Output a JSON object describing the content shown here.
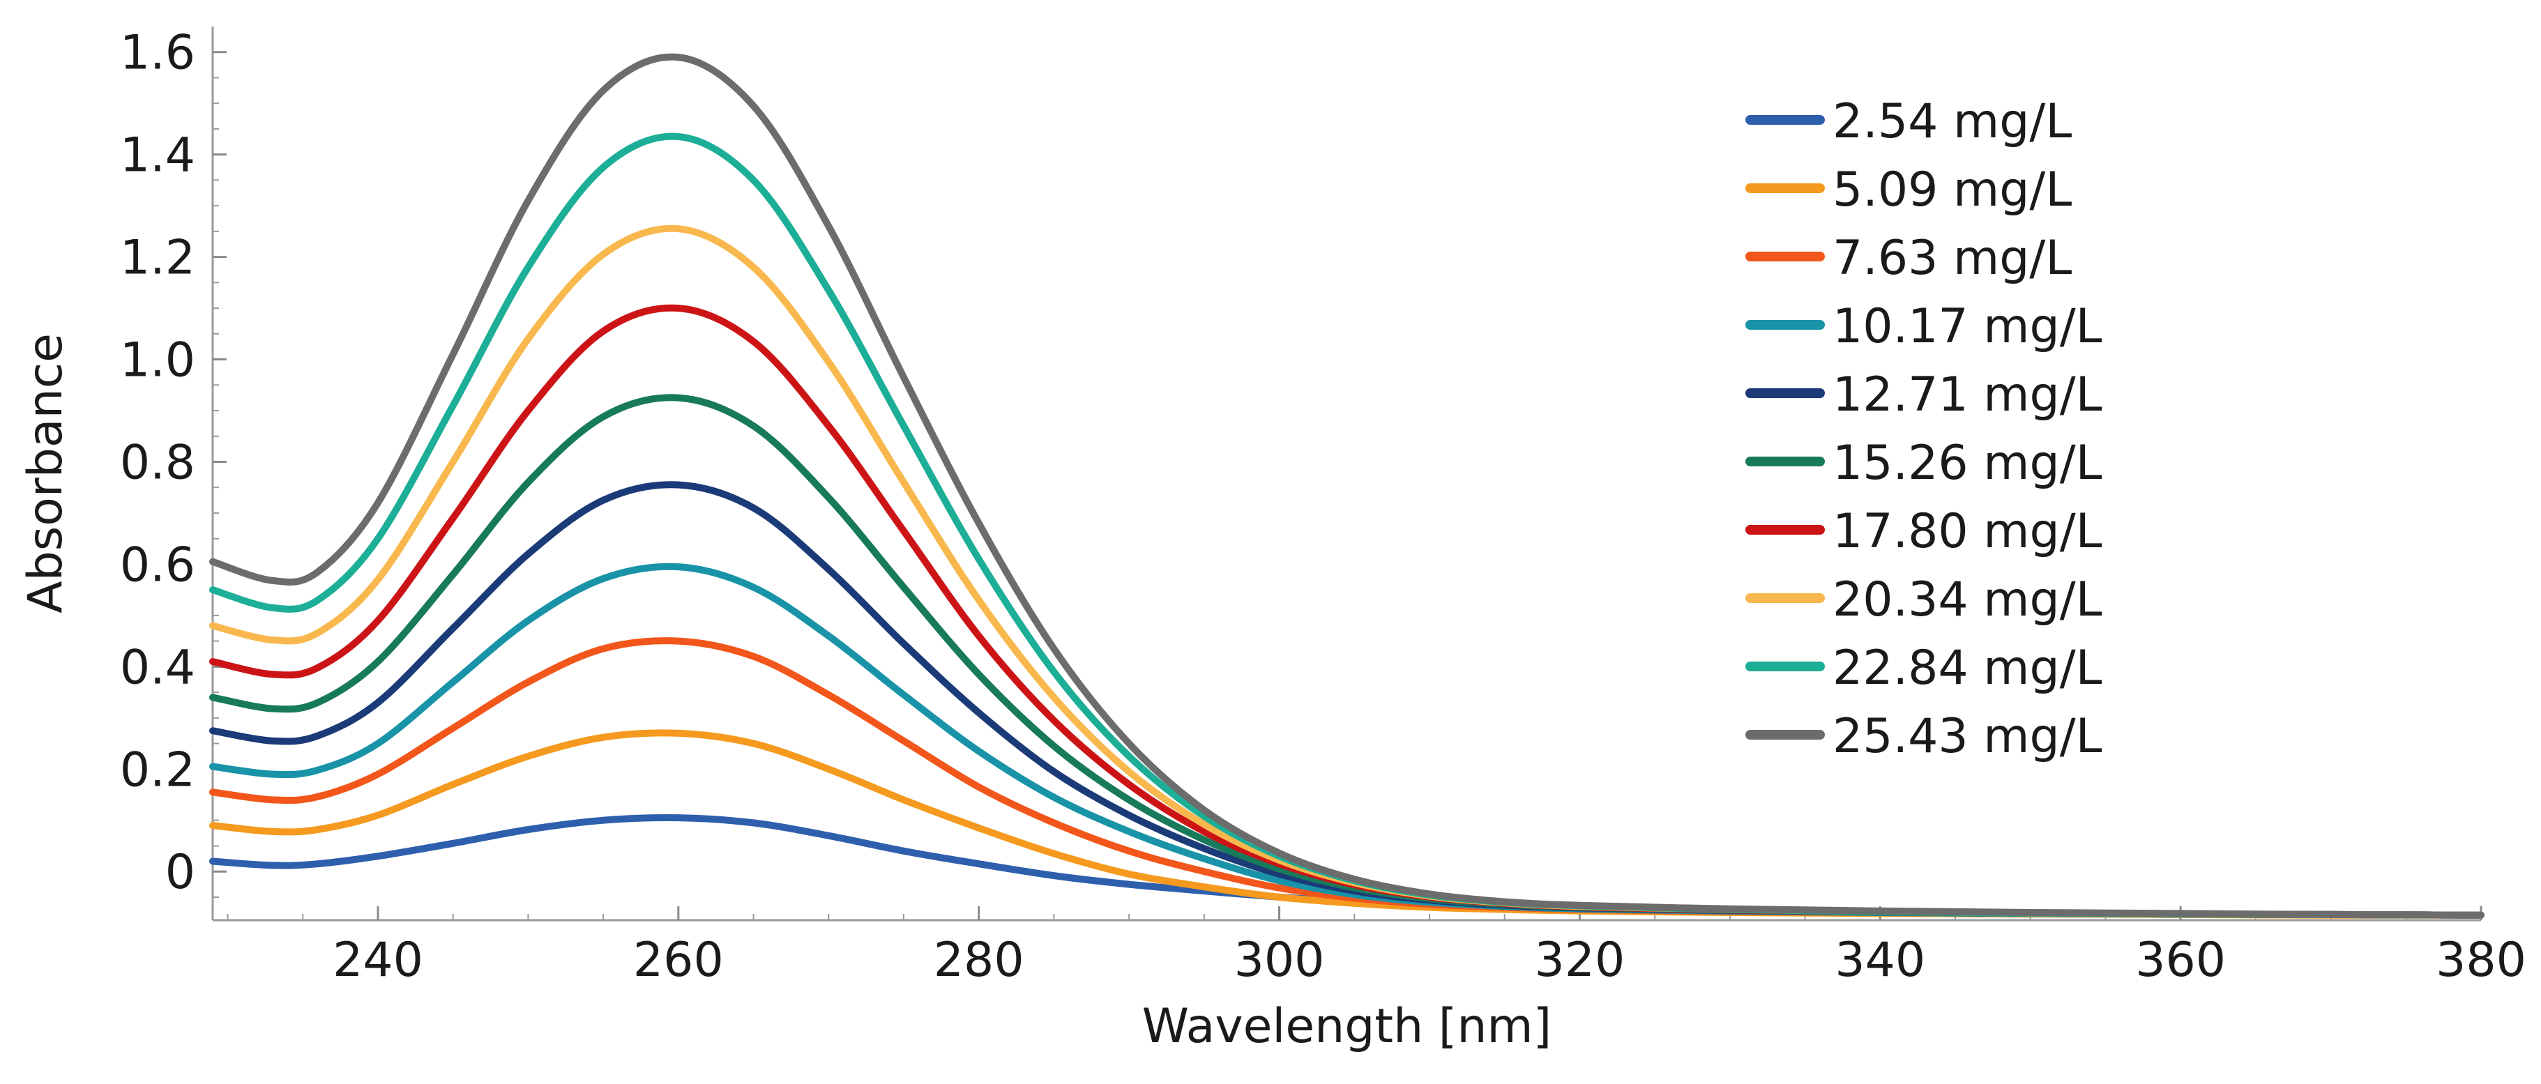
{
  "chart_data": {
    "type": "line",
    "title": "",
    "xlabel": "Wavelength [nm]",
    "ylabel": "Absorbance",
    "xlim": [
      229,
      380
    ],
    "ylim": [
      -0.095,
      1.65
    ],
    "x_ticks": [
      240,
      260,
      280,
      300,
      320,
      340,
      360,
      380
    ],
    "x_tick_labels": [
      "240",
      "260",
      "280",
      "300",
      "320",
      "340",
      "360",
      "380"
    ],
    "y_ticks": [
      0,
      0.2,
      0.4,
      0.6,
      0.8,
      1.0,
      1.2,
      1.4,
      1.6
    ],
    "y_tick_labels": [
      "0",
      "0.2",
      "0.4",
      "0.6",
      "0.8",
      "1.0",
      "1.2",
      "1.4",
      "1.6"
    ],
    "grid": false,
    "legend_position": "top-right",
    "x": [
      229,
      233,
      236,
      240,
      245,
      250,
      255,
      260,
      265,
      270,
      275,
      280,
      285,
      290,
      295,
      300,
      305,
      310,
      315,
      320,
      330,
      340,
      350,
      360,
      370,
      380
    ],
    "series": [
      {
        "name": "2.54 mg/L",
        "color": "#2e5fac",
        "values": [
          0.02,
          0.012,
          0.015,
          0.03,
          0.055,
          0.082,
          0.1,
          0.105,
          0.095,
          0.07,
          0.04,
          0.015,
          -0.008,
          -0.025,
          -0.038,
          -0.05,
          -0.06,
          -0.068,
          -0.072,
          -0.075,
          -0.078,
          -0.08,
          -0.082,
          -0.083,
          -0.084,
          -0.085
        ]
      },
      {
        "name": "5.09 mg/L",
        "color": "#f59a1e",
        "values": [
          0.09,
          0.078,
          0.082,
          0.11,
          0.17,
          0.225,
          0.262,
          0.27,
          0.25,
          0.2,
          0.14,
          0.085,
          0.035,
          -0.005,
          -0.03,
          -0.05,
          -0.062,
          -0.07,
          -0.074,
          -0.077,
          -0.08,
          -0.082,
          -0.083,
          -0.084,
          -0.085,
          -0.085
        ]
      },
      {
        "name": "7.63 mg/L",
        "color": "#f2561a",
        "values": [
          0.155,
          0.14,
          0.146,
          0.19,
          0.28,
          0.37,
          0.435,
          0.45,
          0.42,
          0.345,
          0.255,
          0.165,
          0.095,
          0.04,
          0.0,
          -0.032,
          -0.052,
          -0.064,
          -0.07,
          -0.074,
          -0.078,
          -0.08,
          -0.082,
          -0.083,
          -0.084,
          -0.085
        ]
      },
      {
        "name": "10.17 mg/L",
        "color": "#1993a8",
        "values": [
          0.205,
          0.19,
          0.198,
          0.25,
          0.37,
          0.49,
          0.572,
          0.595,
          0.555,
          0.46,
          0.345,
          0.235,
          0.145,
          0.078,
          0.025,
          -0.018,
          -0.045,
          -0.06,
          -0.068,
          -0.073,
          -0.077,
          -0.08,
          -0.082,
          -0.083,
          -0.084,
          -0.085
        ]
      },
      {
        "name": "12.71 mg/L",
        "color": "#1b3a78",
        "values": [
          0.275,
          0.255,
          0.265,
          0.33,
          0.475,
          0.62,
          0.725,
          0.755,
          0.71,
          0.59,
          0.445,
          0.31,
          0.195,
          0.11,
          0.045,
          -0.005,
          -0.038,
          -0.056,
          -0.066,
          -0.071,
          -0.076,
          -0.079,
          -0.081,
          -0.083,
          -0.084,
          -0.085
        ]
      },
      {
        "name": "15.26 mg/L",
        "color": "#177a5a",
        "values": [
          0.34,
          0.318,
          0.33,
          0.41,
          0.58,
          0.76,
          0.888,
          0.925,
          0.87,
          0.73,
          0.555,
          0.385,
          0.245,
          0.14,
          0.062,
          0.005,
          -0.032,
          -0.053,
          -0.064,
          -0.07,
          -0.075,
          -0.079,
          -0.081,
          -0.083,
          -0.084,
          -0.085
        ]
      },
      {
        "name": "17.80 mg/L",
        "color": "#cc1416",
        "values": [
          0.41,
          0.385,
          0.398,
          0.49,
          0.69,
          0.9,
          1.055,
          1.1,
          1.035,
          0.87,
          0.665,
          0.46,
          0.295,
          0.17,
          0.078,
          0.015,
          -0.026,
          -0.05,
          -0.062,
          -0.069,
          -0.075,
          -0.078,
          -0.081,
          -0.083,
          -0.084,
          -0.085
        ]
      },
      {
        "name": "20.34 mg/L",
        "color": "#f9b84d",
        "values": [
          0.48,
          0.452,
          0.466,
          0.57,
          0.8,
          1.04,
          1.205,
          1.255,
          1.18,
          0.995,
          0.76,
          0.53,
          0.34,
          0.195,
          0.092,
          0.022,
          -0.022,
          -0.048,
          -0.061,
          -0.068,
          -0.074,
          -0.078,
          -0.081,
          -0.083,
          -0.084,
          -0.085
        ]
      },
      {
        "name": "22.84 mg/L",
        "color": "#1cae96",
        "values": [
          0.55,
          0.515,
          0.53,
          0.65,
          0.91,
          1.18,
          1.375,
          1.435,
          1.35,
          1.135,
          0.87,
          0.61,
          0.39,
          0.225,
          0.108,
          0.03,
          -0.018,
          -0.046,
          -0.06,
          -0.067,
          -0.074,
          -0.078,
          -0.081,
          -0.083,
          -0.084,
          -0.085
        ]
      },
      {
        "name": "25.43 mg/L",
        "color": "#6c6c6c",
        "values": [
          0.605,
          0.568,
          0.585,
          0.72,
          1.01,
          1.31,
          1.525,
          1.59,
          1.495,
          1.26,
          0.965,
          0.68,
          0.435,
          0.25,
          0.12,
          0.036,
          -0.015,
          -0.044,
          -0.059,
          -0.066,
          -0.073,
          -0.077,
          -0.08,
          -0.082,
          -0.084,
          -0.085
        ]
      }
    ]
  }
}
